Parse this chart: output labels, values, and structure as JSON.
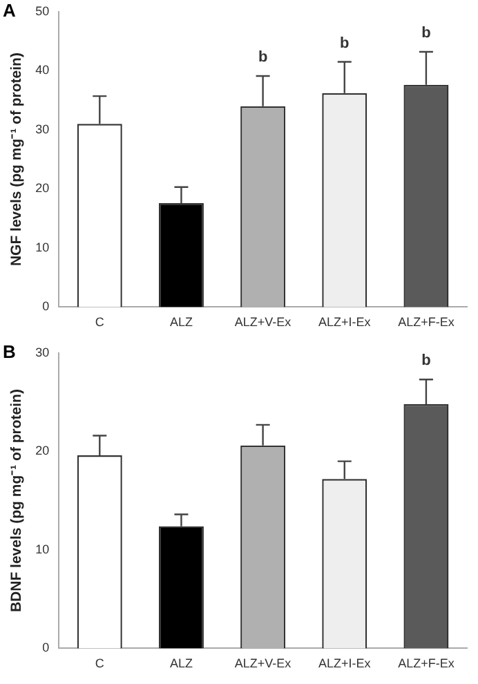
{
  "chart_data": [
    {
      "type": "bar",
      "title": "A",
      "ylabel": "NGF levels (pg mg⁻¹ of protein)",
      "categories": [
        "C",
        "ALZ",
        "ALZ+V-Ex",
        "ALZ+I-Ex",
        "ALZ+F-Ex"
      ],
      "values": [
        31,
        17.6,
        34,
        36.2,
        37.6
      ],
      "errors": [
        [
          31,
          35.7
        ],
        [
          17.6,
          20.3
        ],
        [
          34,
          39.1
        ],
        [
          36.2,
          41.5
        ],
        [
          37.6,
          43.2
        ]
      ],
      "colors": [
        "#ffffff",
        "#000000",
        "#b0b0b0",
        "#eeeeee",
        "#5a5a5a"
      ],
      "ylim": [
        0,
        50
      ],
      "yticks": [
        0,
        10,
        20,
        30,
        40,
        50
      ],
      "grid": false,
      "legend": false,
      "annotations": [
        {
          "text": "b",
          "x": "ALZ+V-Ex",
          "y": 39.1
        },
        {
          "text": "b",
          "x": "ALZ+I-Ex",
          "y": 41.5
        },
        {
          "text": "b",
          "x": "ALZ+F-Ex",
          "y": 43.2
        }
      ]
    },
    {
      "type": "bar",
      "title": "B",
      "ylabel": "BDNF levels (pg mg⁻¹ of protein)",
      "categories": [
        "C",
        "ALZ",
        "ALZ+V-Ex",
        "ALZ+I-Ex",
        "ALZ+F-Ex"
      ],
      "values": [
        19.6,
        12.4,
        20.6,
        17.2,
        24.8
      ],
      "errors": [
        [
          19.6,
          21.6
        ],
        [
          12.4,
          13.6
        ],
        [
          20.6,
          22.7
        ],
        [
          17.2,
          19
        ],
        [
          24.8,
          27.3
        ]
      ],
      "colors": [
        "#ffffff",
        "#000000",
        "#b0b0b0",
        "#eeeeee",
        "#5a5a5a"
      ],
      "ylim": [
        0,
        30
      ],
      "yticks": [
        0,
        10,
        20,
        30
      ],
      "grid": false,
      "legend": false,
      "annotations": [
        {
          "text": "b",
          "x": "ALZ+F-Ex",
          "y": 27.3
        }
      ]
    }
  ]
}
